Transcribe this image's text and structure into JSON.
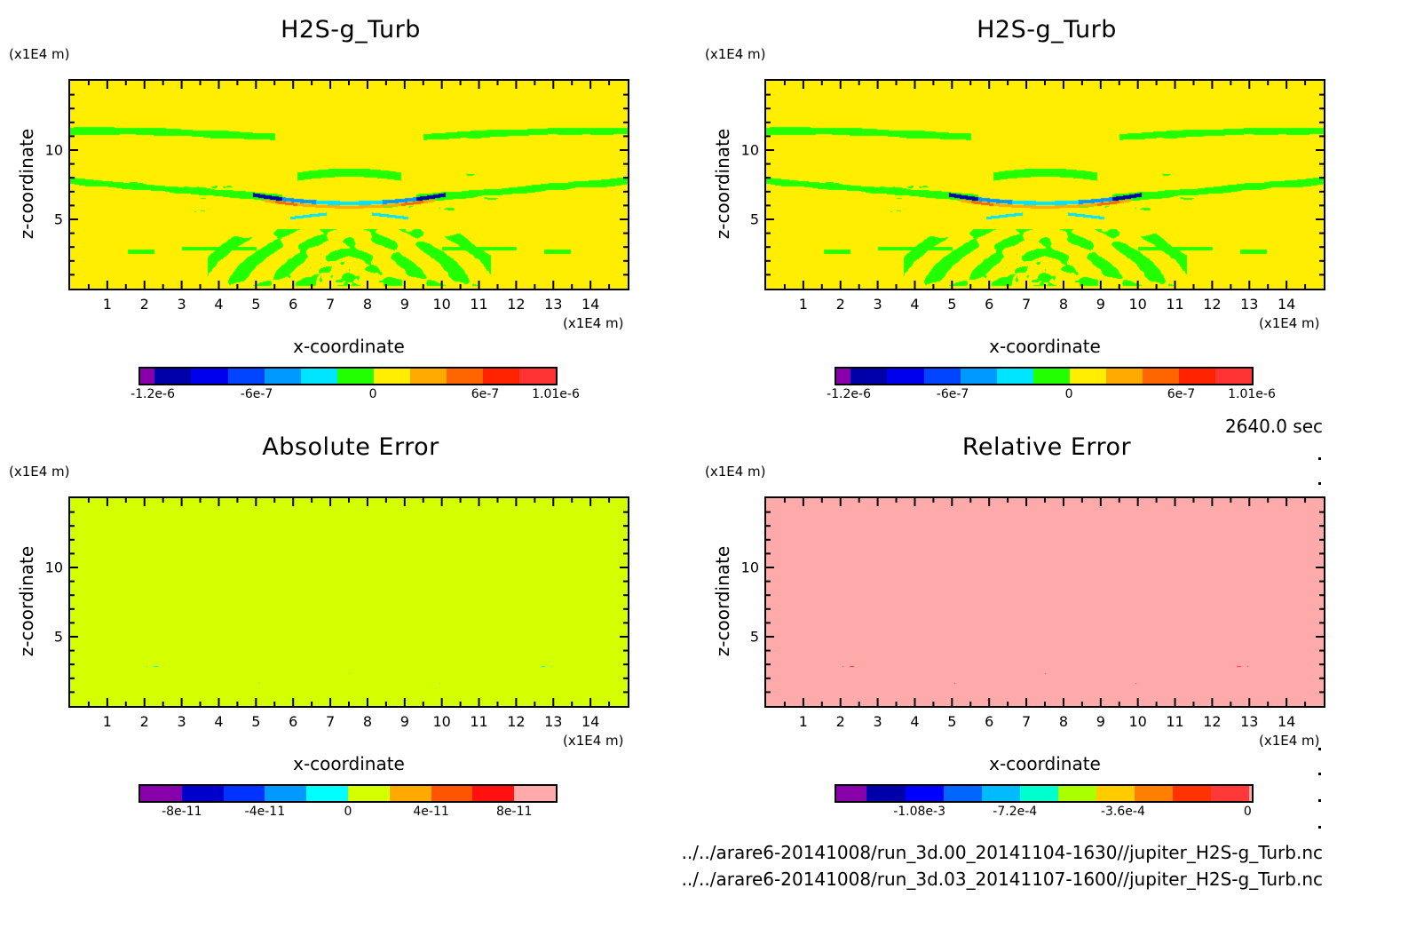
{
  "chart_data": [
    {
      "type": "heatmap",
      "id": "tl",
      "title": "H2S-g_Turb",
      "xlabel": "x-coordinate",
      "ylabel": "z-coordinate",
      "x_unit": "(x1E4 m)",
      "y_unit": "(x1E4 m)",
      "xlim": [
        0,
        15
      ],
      "ylim": [
        0,
        15
      ],
      "x_ticks": [
        "1",
        "2",
        "3",
        "4",
        "5",
        "6",
        "7",
        "8",
        "9",
        "10",
        "11",
        "12",
        "13",
        "14"
      ],
      "y_ticks": [
        "5",
        "10"
      ],
      "pattern": "field",
      "background_color": "#ffee00",
      "colorbar": {
        "colors": [
          "#8800aa",
          "#0000aa",
          "#0000ee",
          "#0044ff",
          "#0099ff",
          "#00e5ff",
          "#22ff00",
          "#ffee00",
          "#ffaa00",
          "#ff6600",
          "#ff2200",
          "#ff3333"
        ],
        "weights": [
          0.4,
          1,
          1,
          1,
          1,
          1,
          1,
          1,
          1,
          1,
          1,
          1
        ],
        "tick_labels": [
          "-1.2e-6",
          "-6e-7",
          "0",
          "6e-7",
          "1.01e-6"
        ],
        "tick_positions": [
          0.03,
          0.28,
          0.56,
          0.83,
          1.0
        ]
      }
    },
    {
      "type": "heatmap",
      "id": "tr",
      "title": "H2S-g_Turb",
      "xlabel": "x-coordinate",
      "ylabel": "z-coordinate",
      "x_unit": "(x1E4 m)",
      "y_unit": "(x1E4 m)",
      "xlim": [
        0,
        15
      ],
      "ylim": [
        0,
        15
      ],
      "x_ticks": [
        "1",
        "2",
        "3",
        "4",
        "5",
        "6",
        "7",
        "8",
        "9",
        "10",
        "11",
        "12",
        "13",
        "14"
      ],
      "y_ticks": [
        "5",
        "10"
      ],
      "pattern": "field",
      "background_color": "#ffee00",
      "colorbar": {
        "colors": [
          "#8800aa",
          "#0000aa",
          "#0000ee",
          "#0044ff",
          "#0099ff",
          "#00e5ff",
          "#22ff00",
          "#ffee00",
          "#ffaa00",
          "#ff6600",
          "#ff2200",
          "#ff3333"
        ],
        "weights": [
          0.4,
          1,
          1,
          1,
          1,
          1,
          1,
          1,
          1,
          1,
          1,
          1
        ],
        "tick_labels": [
          "-1.2e-6",
          "-6e-7",
          "0",
          "6e-7",
          "1.01e-6"
        ],
        "tick_positions": [
          0.03,
          0.28,
          0.56,
          0.83,
          1.0
        ]
      }
    },
    {
      "type": "heatmap",
      "id": "bl",
      "title": "Absolute Error",
      "xlabel": "x-coordinate",
      "ylabel": "z-coordinate",
      "x_unit": "(x1E4 m)",
      "y_unit": "(x1E4 m)",
      "xlim": [
        0,
        15
      ],
      "ylim": [
        0,
        15
      ],
      "x_ticks": [
        "1",
        "2",
        "3",
        "4",
        "5",
        "6",
        "7",
        "8",
        "9",
        "10",
        "11",
        "12",
        "13",
        "14"
      ],
      "y_ticks": [
        "5",
        "10"
      ],
      "pattern": "error",
      "background_color": "#d4ff00",
      "pattern_color": "#00ffff",
      "colorbar": {
        "colors": [
          "#8800aa",
          "#0000cc",
          "#0033ff",
          "#0099ff",
          "#00ffff",
          "#d4ff00",
          "#ffaa00",
          "#ff5500",
          "#ff1111",
          "#ffaaaa"
        ],
        "weights": [
          1,
          1,
          1,
          1,
          1,
          1,
          1,
          1,
          1,
          1
        ],
        "tick_labels": [
          "-8e-11",
          "-4e-11",
          "0",
          "4e-11",
          "8e-11"
        ],
        "tick_positions": [
          0.1,
          0.3,
          0.5,
          0.7,
          0.9
        ]
      }
    },
    {
      "type": "heatmap",
      "id": "br",
      "title": "Relative Error",
      "xlabel": "x-coordinate",
      "ylabel": "z-coordinate",
      "x_unit": "(x1E4 m)",
      "y_unit": "(x1E4 m)",
      "xlim": [
        0,
        15
      ],
      "ylim": [
        0,
        15
      ],
      "x_ticks": [
        "1",
        "2",
        "3",
        "4",
        "5",
        "6",
        "7",
        "8",
        "9",
        "10",
        "11",
        "12",
        "13",
        "14"
      ],
      "y_ticks": [
        "5",
        "10"
      ],
      "pattern": "error",
      "background_color": "#ffaaaa",
      "pattern_color": "#ff3333",
      "colorbar": {
        "colors": [
          "#8800aa",
          "#0000aa",
          "#0000ff",
          "#0066ff",
          "#00bbff",
          "#00ffcc",
          "#aaff00",
          "#ffcc00",
          "#ff8000",
          "#ff3300",
          "#ff3838",
          "#ffaaaa"
        ],
        "weights": [
          0.8,
          1,
          1,
          1,
          1,
          1,
          1,
          1,
          1,
          1,
          1,
          0.06
        ],
        "tick_labels": [
          "-1.08e-3",
          "-7.2e-4",
          "-3.6e-4",
          "0"
        ],
        "tick_positions": [
          0.2,
          0.43,
          0.69,
          0.99
        ]
      }
    }
  ],
  "timestamp": "2640.0 sec",
  "file_paths": [
    "../../arare6-20141008/run_3d.00_20141104-1630//jupiter_H2S-g_Turb.nc",
    "../../arare6-20141008/run_3d.03_20141107-1600//jupiter_H2S-g_Turb.nc"
  ]
}
